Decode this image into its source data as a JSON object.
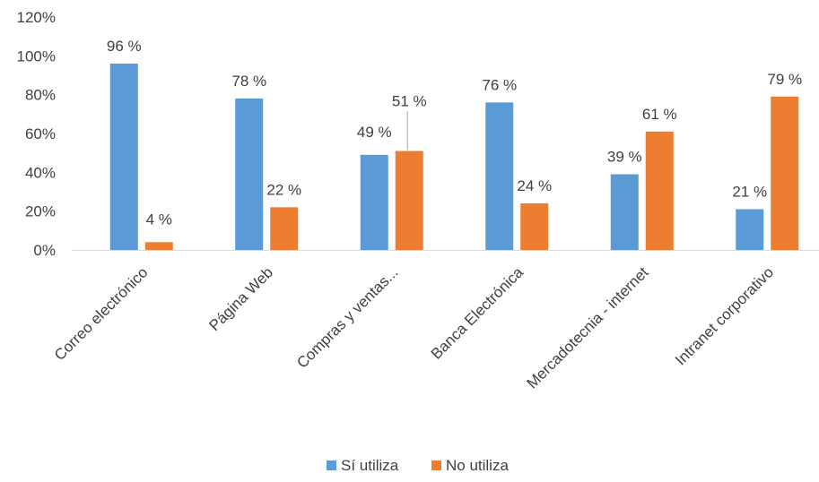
{
  "chart_data": {
    "type": "bar",
    "categories": [
      "Correo electrónico",
      "Página Web",
      "Compras y ventas...",
      "Banca Electrónica",
      "Mercadotecnia - internet",
      "Intranet corporativo"
    ],
    "series": [
      {
        "name": "Sí utiliza",
        "color": "#5b9bd5",
        "values": [
          96,
          78,
          49,
          76,
          39,
          21
        ],
        "labels": [
          "96 %",
          "78 %",
          "49 %",
          "76 %",
          "39 %",
          "21 %"
        ]
      },
      {
        "name": "No utiliza",
        "color": "#ed7d31",
        "values": [
          4,
          22,
          51,
          24,
          61,
          79
        ],
        "labels": [
          "4 %",
          "22 %",
          "51 %",
          "24 %",
          "61 %",
          "79 %"
        ]
      }
    ],
    "ylim": [
      0,
      120
    ],
    "yticks": [
      0,
      20,
      40,
      60,
      80,
      100,
      120
    ],
    "ytick_labels": [
      "0%",
      "20%",
      "40%",
      "60%",
      "80%",
      "100%",
      "120%"
    ],
    "grid": false,
    "legend_position": "bottom"
  }
}
